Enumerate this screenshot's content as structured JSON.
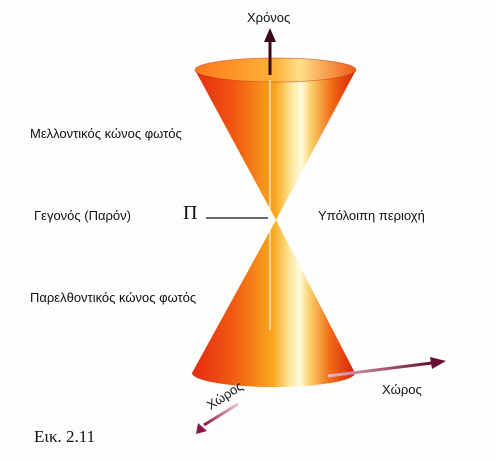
{
  "labels": {
    "time_axis": "Χρόνος",
    "future_cone": "Μελλοντικός κώνος φωτός",
    "event": "Γεγονός (Παρόν)",
    "event_symbol": "Π",
    "elsewhere": "Υπόλοιπη περιοχή",
    "past_cone": "Παρελθοντικός κώνος φωτός",
    "space_axis_1": "Χώρος",
    "space_axis_2": "Χώρος",
    "figure_caption": "Εικ. 2.11"
  },
  "colors": {
    "cone_red": "#e8220f",
    "cone_orange": "#f7a11e",
    "cone_highlight": "#fff4b8",
    "axis_dark": "#3a0a1a",
    "axis_magenta": "#b01a5c"
  }
}
